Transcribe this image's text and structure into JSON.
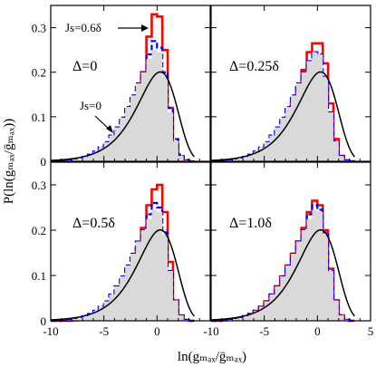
{
  "figure": {
    "ylabel": "P(ln(gₘₐₓ/ḡₘₐₓ))",
    "xlabel": "ln(gₘₐₓ/ḡₘₐₓ)",
    "annotation_js06": "Js=0.6δ",
    "annotation_js0": "Js=0"
  },
  "colors": {
    "red": "#ff0000",
    "blue": "#0000ff",
    "fill": "#d9d9d9",
    "line": "#000000"
  },
  "chart_data": [
    {
      "type": "area",
      "title": "Δ=0",
      "xlim": [
        -10,
        5
      ],
      "ylim": [
        0,
        0.35
      ],
      "xticks": [],
      "yticks": [
        "0",
        "0.1",
        "0.2",
        "0.3"
      ],
      "grid": false,
      "series": [
        {
          "name": "Js=0.6δ",
          "style": "step",
          "color": "red",
          "x": [
            -10,
            -9.5,
            -9,
            -8.5,
            -8,
            -7.5,
            -7,
            -6.5,
            -6,
            -5.5,
            -5,
            -4.5,
            -4,
            -3.5,
            -3,
            -2.5,
            -2,
            -1.5,
            -1,
            -0.5,
            0,
            0.5,
            1,
            1.5,
            2,
            2.5,
            3
          ],
          "y": [
            0,
            0,
            0,
            0,
            0,
            0,
            0,
            0.001,
            0.002,
            0.003,
            0.006,
            0.011,
            0.019,
            0.032,
            0.053,
            0.085,
            0.13,
            0.2,
            0.28,
            0.33,
            0.325,
            0.25,
            0.12,
            0.04,
            0.01,
            0.002,
            0
          ]
        },
        {
          "name": "Js=0",
          "style": "step",
          "color": "blue",
          "x": [
            -10,
            -9.5,
            -9,
            -8.5,
            -8,
            -7.5,
            -7,
            -6.5,
            -6,
            -5.5,
            -5,
            -4.5,
            -4,
            -3.5,
            -3,
            -2.5,
            -2,
            -1.5,
            -1,
            -0.5,
            0,
            0.5,
            1,
            1.5,
            2,
            2.5,
            3
          ],
          "y": [
            0,
            0,
            0.001,
            0.002,
            0.004,
            0.006,
            0.01,
            0.015,
            0.022,
            0.031,
            0.043,
            0.058,
            0.076,
            0.098,
            0.122,
            0.148,
            0.175,
            0.2,
            0.24,
            0.27,
            0.255,
            0.2,
            0.12,
            0.05,
            0.015,
            0.003,
            0
          ]
        },
        {
          "name": "histogram",
          "style": "fill",
          "color": "fill",
          "x": [
            -10,
            -9.5,
            -9,
            -8.5,
            -8,
            -7.5,
            -7,
            -6.5,
            -6,
            -5.5,
            -5,
            -4.5,
            -4,
            -3.5,
            -3,
            -2.5,
            -2,
            -1.5,
            -1,
            -0.5,
            0,
            0.5,
            1,
            1.5,
            2,
            2.5,
            3
          ],
          "y": [
            0,
            0,
            0.001,
            0.002,
            0.004,
            0.006,
            0.01,
            0.015,
            0.022,
            0.031,
            0.043,
            0.058,
            0.076,
            0.098,
            0.122,
            0.148,
            0.175,
            0.2,
            0.23,
            0.25,
            0.245,
            0.19,
            0.11,
            0.045,
            0.012,
            0.002,
            0
          ]
        },
        {
          "name": "fit",
          "style": "line",
          "color": "line"
        }
      ]
    },
    {
      "type": "area",
      "title": "Δ=0.25δ",
      "xlim": [
        -10,
        5
      ],
      "ylim": [
        0,
        0.35
      ],
      "xticks": [],
      "yticks": [],
      "grid": false,
      "series": [
        {
          "name": "Js=0.6δ",
          "style": "step",
          "color": "red",
          "x": [
            -10,
            -9.5,
            -9,
            -8.5,
            -8,
            -7.5,
            -7,
            -6.5,
            -6,
            -5.5,
            -5,
            -4.5,
            -4,
            -3.5,
            -3,
            -2.5,
            -2,
            -1.5,
            -1,
            -0.5,
            0,
            0.5,
            1,
            1.5,
            2,
            2.5,
            3
          ],
          "y": [
            0,
            0,
            0,
            0.001,
            0.002,
            0.003,
            0.005,
            0.008,
            0.012,
            0.018,
            0.026,
            0.037,
            0.052,
            0.072,
            0.098,
            0.13,
            0.165,
            0.205,
            0.245,
            0.265,
            0.265,
            0.22,
            0.13,
            0.05,
            0.012,
            0.002,
            0
          ]
        },
        {
          "name": "Js=0",
          "style": "step",
          "color": "blue",
          "x": [
            -10,
            -9.5,
            -9,
            -8.5,
            -8,
            -7.5,
            -7,
            -6.5,
            -6,
            -5.5,
            -5,
            -4.5,
            -4,
            -3.5,
            -3,
            -2.5,
            -2,
            -1.5,
            -1,
            -0.5,
            0,
            0.5,
            1,
            1.5,
            2,
            2.5,
            3
          ],
          "y": [
            0,
            0,
            0.001,
            0.002,
            0.004,
            0.006,
            0.01,
            0.015,
            0.022,
            0.031,
            0.043,
            0.058,
            0.076,
            0.098,
            0.122,
            0.148,
            0.175,
            0.2,
            0.225,
            0.245,
            0.24,
            0.19,
            0.11,
            0.045,
            0.012,
            0.002,
            0
          ]
        },
        {
          "name": "histogram",
          "style": "fill",
          "color": "fill",
          "x": [
            -10,
            -9.5,
            -9,
            -8.5,
            -8,
            -7.5,
            -7,
            -6.5,
            -6,
            -5.5,
            -5,
            -4.5,
            -4,
            -3.5,
            -3,
            -2.5,
            -2,
            -1.5,
            -1,
            -0.5,
            0,
            0.5,
            1,
            1.5,
            2,
            2.5,
            3
          ],
          "y": [
            0,
            0,
            0.001,
            0.002,
            0.004,
            0.006,
            0.01,
            0.015,
            0.022,
            0.031,
            0.043,
            0.058,
            0.076,
            0.098,
            0.122,
            0.148,
            0.175,
            0.2,
            0.225,
            0.245,
            0.24,
            0.19,
            0.11,
            0.045,
            0.012,
            0.002,
            0
          ]
        },
        {
          "name": "fit",
          "style": "line",
          "color": "line"
        }
      ]
    },
    {
      "type": "area",
      "title": "Δ=0.5δ",
      "xlim": [
        -10,
        5
      ],
      "ylim": [
        0,
        0.35
      ],
      "xticks": [
        "-10",
        "-5",
        "0"
      ],
      "yticks": [
        "0",
        "0.1",
        "0.2",
        "0.3"
      ],
      "grid": false,
      "series": [
        {
          "name": "Js=0.6δ",
          "style": "step",
          "color": "red",
          "x": [
            -10,
            -9.5,
            -9,
            -8.5,
            -8,
            -7.5,
            -7,
            -6.5,
            -6,
            -5.5,
            -5,
            -4.5,
            -4,
            -3.5,
            -3,
            -2.5,
            -2,
            -1.5,
            -1,
            -0.5,
            0,
            0.5,
            1,
            1.5,
            2,
            2.5,
            3
          ],
          "y": [
            0,
            0,
            0,
            0,
            0.001,
            0.002,
            0.003,
            0.005,
            0.008,
            0.013,
            0.02,
            0.03,
            0.043,
            0.062,
            0.088,
            0.12,
            0.16,
            0.205,
            0.255,
            0.29,
            0.3,
            0.24,
            0.13,
            0.045,
            0.01,
            0.002,
            0
          ]
        },
        {
          "name": "Js=0",
          "style": "step",
          "color": "blue",
          "x": [
            -10,
            -9.5,
            -9,
            -8.5,
            -8,
            -7.5,
            -7,
            -6.5,
            -6,
            -5.5,
            -5,
            -4.5,
            -4,
            -3.5,
            -3,
            -2.5,
            -2,
            -1.5,
            -1,
            -0.5,
            0,
            0.5,
            1,
            1.5,
            2,
            2.5,
            3
          ],
          "y": [
            0,
            0,
            0.001,
            0.002,
            0.004,
            0.006,
            0.01,
            0.015,
            0.022,
            0.031,
            0.043,
            0.058,
            0.076,
            0.098,
            0.122,
            0.148,
            0.175,
            0.2,
            0.235,
            0.26,
            0.25,
            0.195,
            0.11,
            0.045,
            0.012,
            0.002,
            0
          ]
        },
        {
          "name": "histogram",
          "style": "fill",
          "color": "fill",
          "x": [
            -10,
            -9.5,
            -9,
            -8.5,
            -8,
            -7.5,
            -7,
            -6.5,
            -6,
            -5.5,
            -5,
            -4.5,
            -4,
            -3.5,
            -3,
            -2.5,
            -2,
            -1.5,
            -1,
            -0.5,
            0,
            0.5,
            1,
            1.5,
            2,
            2.5,
            3
          ],
          "y": [
            0,
            0,
            0.001,
            0.002,
            0.004,
            0.006,
            0.01,
            0.015,
            0.022,
            0.031,
            0.043,
            0.058,
            0.076,
            0.098,
            0.122,
            0.148,
            0.175,
            0.2,
            0.225,
            0.245,
            0.24,
            0.19,
            0.11,
            0.045,
            0.012,
            0.002,
            0
          ]
        },
        {
          "name": "fit",
          "style": "line",
          "color": "line"
        }
      ]
    },
    {
      "type": "area",
      "title": "Δ=1.0δ",
      "xlim": [
        -10,
        5
      ],
      "ylim": [
        0,
        0.35
      ],
      "xticks": [
        "-10",
        "-5",
        "0",
        "5"
      ],
      "yticks": [],
      "grid": false,
      "series": [
        {
          "name": "Js=0.6δ",
          "style": "step",
          "color": "red",
          "x": [
            -10,
            -9.5,
            -9,
            -8.5,
            -8,
            -7.5,
            -7,
            -6.5,
            -6,
            -5.5,
            -5,
            -4.5,
            -4,
            -3.5,
            -3,
            -2.5,
            -2,
            -1.5,
            -1,
            -0.5,
            0,
            0.5,
            1,
            1.5,
            2,
            2.5,
            3
          ],
          "y": [
            0,
            0,
            0.001,
            0.002,
            0.004,
            0.006,
            0.01,
            0.015,
            0.022,
            0.031,
            0.043,
            0.058,
            0.076,
            0.098,
            0.122,
            0.148,
            0.175,
            0.205,
            0.24,
            0.265,
            0.255,
            0.2,
            0.115,
            0.045,
            0.012,
            0.002,
            0
          ]
        },
        {
          "name": "Js=0",
          "style": "step",
          "color": "blue",
          "x": [
            -10,
            -9.5,
            -9,
            -8.5,
            -8,
            -7.5,
            -7,
            -6.5,
            -6,
            -5.5,
            -5,
            -4.5,
            -4,
            -3.5,
            -3,
            -2.5,
            -2,
            -1.5,
            -1,
            -0.5,
            0,
            0.5,
            1,
            1.5,
            2,
            2.5,
            3
          ],
          "y": [
            0,
            0,
            0.001,
            0.002,
            0.004,
            0.006,
            0.01,
            0.015,
            0.022,
            0.031,
            0.043,
            0.058,
            0.076,
            0.098,
            0.122,
            0.148,
            0.175,
            0.2,
            0.235,
            0.255,
            0.245,
            0.195,
            0.11,
            0.045,
            0.012,
            0.002,
            0
          ]
        },
        {
          "name": "histogram",
          "style": "fill",
          "color": "fill",
          "x": [
            -10,
            -9.5,
            -9,
            -8.5,
            -8,
            -7.5,
            -7,
            -6.5,
            -6,
            -5.5,
            -5,
            -4.5,
            -4,
            -3.5,
            -3,
            -2.5,
            -2,
            -1.5,
            -1,
            -0.5,
            0,
            0.5,
            1,
            1.5,
            2,
            2.5,
            3
          ],
          "y": [
            0,
            0,
            0.001,
            0.002,
            0.004,
            0.006,
            0.01,
            0.015,
            0.022,
            0.031,
            0.043,
            0.058,
            0.076,
            0.098,
            0.122,
            0.148,
            0.175,
            0.2,
            0.225,
            0.245,
            0.24,
            0.19,
            0.11,
            0.045,
            0.012,
            0.002,
            0
          ]
        },
        {
          "name": "fit",
          "style": "line",
          "color": "line"
        }
      ]
    }
  ]
}
